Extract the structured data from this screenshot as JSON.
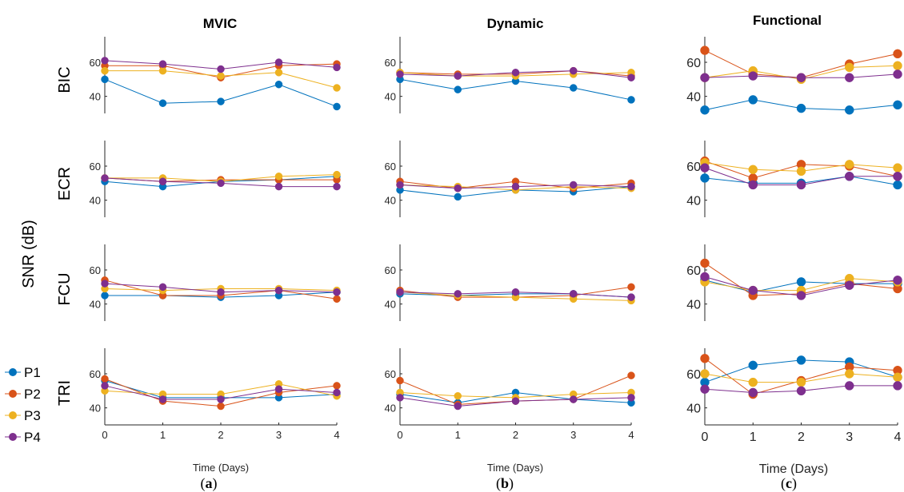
{
  "colors": {
    "P1": "#0072BD",
    "P2": "#D95319",
    "P3": "#EDB120",
    "P4": "#7E2F8E"
  },
  "figure": {
    "ylabel": "SNR (dB)",
    "xlabel": "Time (Days)",
    "columns": [
      "MVIC",
      "Dynamic",
      "Functional"
    ],
    "rows": [
      "BIC",
      "ECR",
      "FCU",
      "TRI"
    ],
    "panel_labels": [
      {
        "open": "(",
        "letter": "a",
        "close": ")"
      },
      {
        "open": "(",
        "letter": "b",
        "close": ")"
      },
      {
        "open": "(",
        "letter": "c",
        "close": ")"
      }
    ],
    "legend": [
      "P1",
      "P2",
      "P3",
      "P4"
    ],
    "x_ticks": [
      "0",
      "1",
      "2",
      "3",
      "4"
    ]
  },
  "chart_data": {
    "type": "line",
    "x": [
      0,
      1,
      2,
      3,
      4
    ],
    "xlabel": "Time (Days)",
    "ylabel": "SNR (dB)",
    "xlim": [
      0,
      4
    ],
    "ylim": [
      30,
      75
    ],
    "yticks": [
      40,
      60
    ],
    "grid": false,
    "legend_position": "left",
    "series_names": [
      "P1",
      "P2",
      "P3",
      "P4"
    ],
    "panels": [
      {
        "column": "MVIC",
        "row": "BIC",
        "series": [
          {
            "name": "P1",
            "values": [
              50,
              36,
              37,
              47,
              34
            ]
          },
          {
            "name": "P2",
            "values": [
              58,
              58,
              51,
              58,
              59
            ]
          },
          {
            "name": "P3",
            "values": [
              55,
              55,
              52,
              54,
              45
            ]
          },
          {
            "name": "P4",
            "values": [
              61,
              59,
              56,
              60,
              57
            ]
          }
        ]
      },
      {
        "column": "Dynamic",
        "row": "BIC",
        "series": [
          {
            "name": "P1",
            "values": [
              50,
              44,
              49,
              45,
              38
            ]
          },
          {
            "name": "P2",
            "values": [
              54,
              53,
              53,
              55,
              52
            ]
          },
          {
            "name": "P3",
            "values": [
              54,
              52,
              52,
              53,
              54
            ]
          },
          {
            "name": "P4",
            "values": [
              53,
              52,
              54,
              55,
              51
            ]
          }
        ]
      },
      {
        "column": "Functional",
        "row": "BIC",
        "series": [
          {
            "name": "P1",
            "values": [
              32,
              38,
              33,
              32,
              35
            ]
          },
          {
            "name": "P2",
            "values": [
              67,
              53,
              51,
              59,
              65
            ]
          },
          {
            "name": "P3",
            "values": [
              51,
              55,
              50,
              57,
              58
            ]
          },
          {
            "name": "P4",
            "values": [
              51,
              52,
              51,
              51,
              53
            ]
          }
        ]
      },
      {
        "column": "MVIC",
        "row": "ECR",
        "series": [
          {
            "name": "P1",
            "values": [
              51,
              48,
              51,
              52,
              54
            ]
          },
          {
            "name": "P2",
            "values": [
              53,
              51,
              52,
              52,
              52
            ]
          },
          {
            "name": "P3",
            "values": [
              53,
              53,
              51,
              54,
              55
            ]
          },
          {
            "name": "P4",
            "values": [
              53,
              51,
              50,
              48,
              48
            ]
          }
        ]
      },
      {
        "column": "Dynamic",
        "row": "ECR",
        "series": [
          {
            "name": "P1",
            "values": [
              46,
              42,
              46,
              45,
              48
            ]
          },
          {
            "name": "P2",
            "values": [
              51,
              47,
              51,
              47,
              50
            ]
          },
          {
            "name": "P3",
            "values": [
              49,
              48,
              46,
              48,
              47
            ]
          },
          {
            "name": "P4",
            "values": [
              49,
              47,
              48,
              49,
              48
            ]
          }
        ]
      },
      {
        "column": "Functional",
        "row": "ECR",
        "series": [
          {
            "name": "P1",
            "values": [
              53,
              50,
              50,
              54,
              49
            ]
          },
          {
            "name": "P2",
            "values": [
              63,
              53,
              61,
              60,
              54
            ]
          },
          {
            "name": "P3",
            "values": [
              62,
              58,
              57,
              61,
              59
            ]
          },
          {
            "name": "P4",
            "values": [
              59,
              49,
              49,
              54,
              54
            ]
          }
        ]
      },
      {
        "column": "MVIC",
        "row": "FCU",
        "series": [
          {
            "name": "P1",
            "values": [
              45,
              45,
              44,
              45,
              47
            ]
          },
          {
            "name": "P2",
            "values": [
              54,
              45,
              45,
              48,
              43
            ]
          },
          {
            "name": "P3",
            "values": [
              49,
              48,
              49,
              49,
              48
            ]
          },
          {
            "name": "P4",
            "values": [
              52,
              50,
              47,
              48,
              47
            ]
          }
        ]
      },
      {
        "column": "Dynamic",
        "row": "FCU",
        "series": [
          {
            "name": "P1",
            "values": [
              46,
              45,
              46,
              46,
              44
            ]
          },
          {
            "name": "P2",
            "values": [
              48,
              44,
              44,
              45,
              50
            ]
          },
          {
            "name": "P3",
            "values": [
              47,
              45,
              44,
              43,
              42
            ]
          },
          {
            "name": "P4",
            "values": [
              47,
              46,
              47,
              46,
              44
            ]
          }
        ]
      },
      {
        "column": "Functional",
        "row": "FCU",
        "series": [
          {
            "name": "P1",
            "values": [
              54,
              47,
              53,
              52,
              52
            ]
          },
          {
            "name": "P2",
            "values": [
              64,
              45,
              46,
              52,
              49
            ]
          },
          {
            "name": "P3",
            "values": [
              53,
              48,
              48,
              55,
              53
            ]
          },
          {
            "name": "P4",
            "values": [
              56,
              48,
              45,
              51,
              54
            ]
          }
        ]
      },
      {
        "column": "MVIC",
        "row": "TRI",
        "series": [
          {
            "name": "P1",
            "values": [
              56,
              46,
              46,
              46,
              48
            ]
          },
          {
            "name": "P2",
            "values": [
              57,
              44,
              41,
              49,
              53
            ]
          },
          {
            "name": "P3",
            "values": [
              50,
              48,
              48,
              54,
              47
            ]
          },
          {
            "name": "P4",
            "values": [
              53,
              45,
              45,
              51,
              49
            ]
          }
        ]
      },
      {
        "column": "Dynamic",
        "row": "TRI",
        "series": [
          {
            "name": "P1",
            "values": [
              48,
              43,
              49,
              45,
              43
            ]
          },
          {
            "name": "P2",
            "values": [
              56,
              42,
              44,
              45,
              59
            ]
          },
          {
            "name": "P3",
            "values": [
              49,
              47,
              46,
              48,
              49
            ]
          },
          {
            "name": "P4",
            "values": [
              46,
              41,
              44,
              45,
              46
            ]
          }
        ]
      },
      {
        "column": "Functional",
        "row": "TRI",
        "series": [
          {
            "name": "P1",
            "values": [
              55,
              65,
              68,
              67,
              58
            ]
          },
          {
            "name": "P2",
            "values": [
              69,
              48,
              56,
              64,
              62
            ]
          },
          {
            "name": "P3",
            "values": [
              60,
              55,
              55,
              60,
              58
            ]
          },
          {
            "name": "P4",
            "values": [
              51,
              49,
              50,
              53,
              53
            ]
          }
        ]
      }
    ]
  }
}
